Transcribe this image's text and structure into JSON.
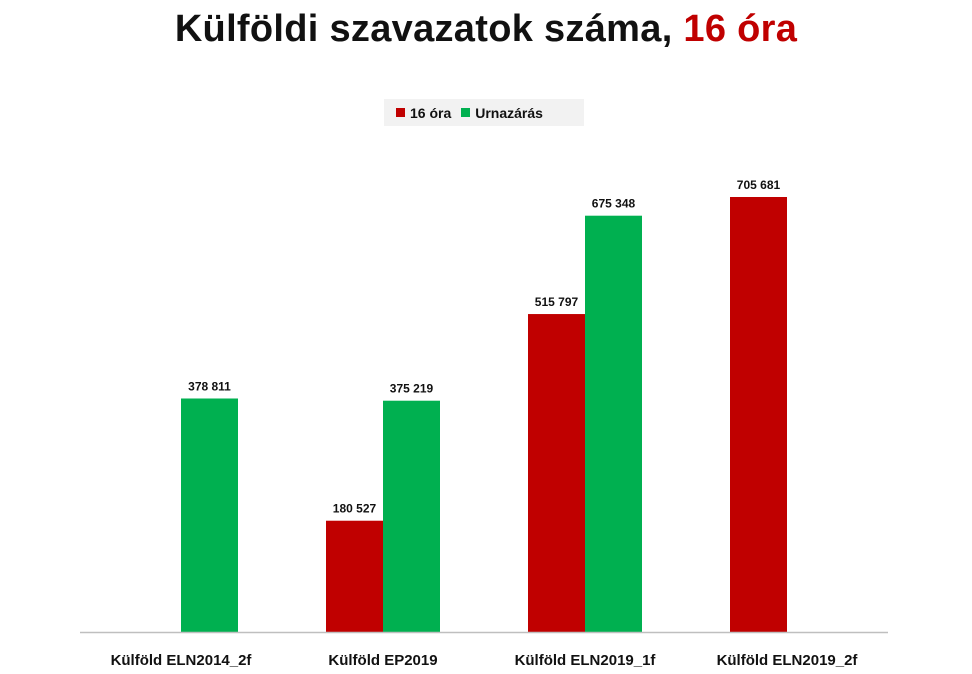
{
  "title": {
    "main": "Külföldi szavazatok száma,",
    "accent": "16 óra"
  },
  "colors": {
    "series_16": "#c00000",
    "series_close": "#00b050",
    "title_accent": "#c00000",
    "axis": "#bfbfbf",
    "legend_bg": "#f2f2f2"
  },
  "legend": {
    "placement": "top-center",
    "items": [
      {
        "label": "16 óra",
        "color": "#c00000"
      },
      {
        "label": "Urnazárás",
        "color": "#00b050"
      }
    ]
  },
  "chart_data": {
    "type": "bar",
    "title": "Külföldi szavazatok száma, 16 óra",
    "xlabel": "",
    "ylabel": "",
    "grid": false,
    "categories": [
      "Külföld ELN2014_2f",
      "Külföld EP2019",
      "Külföld ELN2019_1f",
      "Külföld ELN2019_2f"
    ],
    "series": [
      {
        "name": "16 óra",
        "values": [
          null,
          180527,
          515797,
          705681
        ],
        "labels": [
          "",
          "180 527",
          "515 797",
          "705 681"
        ]
      },
      {
        "name": "Urnazárás",
        "values": [
          378811,
          375219,
          675348,
          null
        ],
        "labels": [
          "378 811",
          "375 219",
          "675 348",
          ""
        ]
      }
    ],
    "ylim": [
      0,
      705681
    ]
  }
}
